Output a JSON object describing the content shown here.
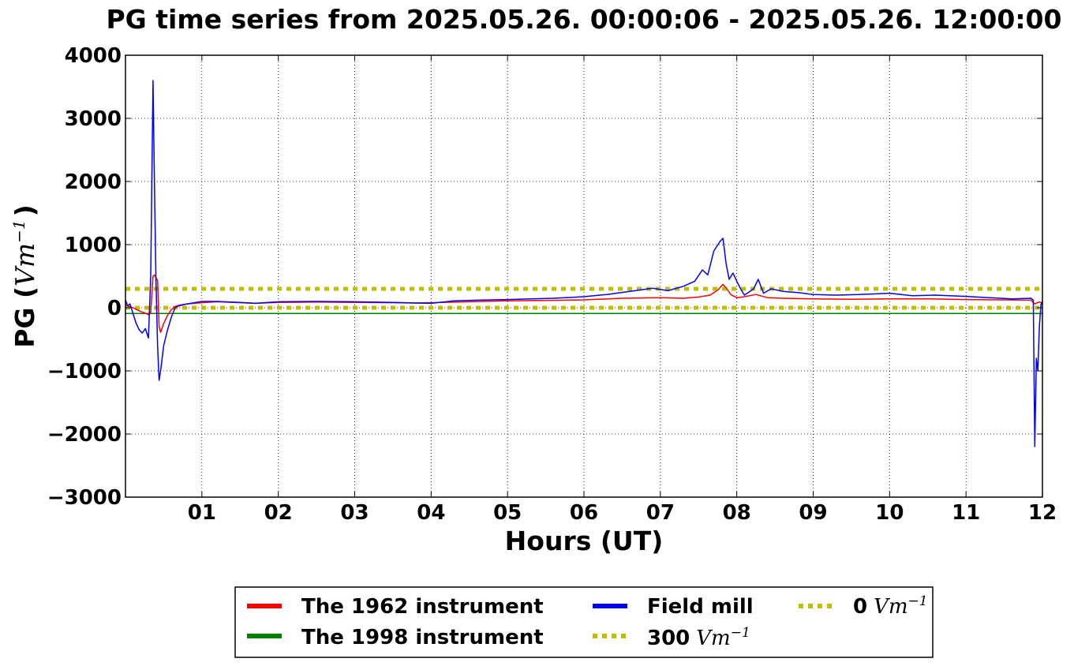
{
  "chart_data": {
    "type": "line",
    "title": "PG time series from 2025.05.26. 00:00:06 - 2025.05.26. 12:00:00",
    "xlabel": "Hours (UT)",
    "ylabel_prefix": "PG (",
    "ylabel_unit": "Vm",
    "ylabel_exp": "−1",
    "ylabel_suffix": ")",
    "xlim": [
      0,
      12
    ],
    "ylim": [
      -3000,
      4000
    ],
    "x_ticks": [
      1,
      2,
      3,
      4,
      5,
      6,
      7,
      8,
      9,
      10,
      11,
      12
    ],
    "x_tick_labels": [
      "01",
      "02",
      "03",
      "04",
      "05",
      "06",
      "07",
      "08",
      "09",
      "10",
      "11",
      "12"
    ],
    "y_ticks": [
      -3000,
      -2000,
      -1000,
      0,
      1000,
      2000,
      3000,
      4000
    ],
    "y_tick_labels": [
      "−3000",
      "−2000",
      "−1000",
      "0",
      "1000",
      "2000",
      "3000",
      "4000"
    ],
    "grid": true,
    "legend_position": "bottom-center, outside plot",
    "series": [
      {
        "name": "The 1962 instrument",
        "color": "#ff0000",
        "style": "solid",
        "x": [
          0.0,
          0.05,
          0.1,
          0.15,
          0.2,
          0.25,
          0.3,
          0.33,
          0.36,
          0.38,
          0.42,
          0.44,
          0.46,
          0.5,
          0.55,
          0.6,
          0.65,
          0.7,
          0.8,
          0.9,
          1.0,
          1.2,
          1.5,
          1.7,
          2.0,
          2.5,
          3.0,
          3.5,
          3.8,
          4.0,
          4.5,
          5.0,
          5.5,
          6.0,
          6.5,
          7.0,
          7.3,
          7.5,
          7.65,
          7.75,
          7.82,
          7.87,
          7.92,
          8.0,
          8.1,
          8.25,
          8.4,
          8.6,
          9.0,
          9.5,
          10.0,
          10.5,
          11.0,
          11.5,
          11.85,
          11.9,
          11.95,
          12.0
        ],
        "y": [
          50,
          20,
          0,
          -30,
          -60,
          -80,
          -110,
          -70,
          500,
          520,
          430,
          -300,
          -390,
          -250,
          -120,
          -30,
          20,
          40,
          60,
          70,
          80,
          95,
          80,
          70,
          85,
          90,
          85,
          80,
          75,
          80,
          95,
          110,
          115,
          125,
          150,
          160,
          150,
          170,
          200,
          280,
          370,
          300,
          210,
          160,
          175,
          210,
          160,
          150,
          140,
          135,
          140,
          140,
          130,
          125,
          120,
          60,
          90,
          80
        ]
      },
      {
        "name": "The 1998 instrument",
        "color": "#008000",
        "style": "solid",
        "x": [
          0,
          12
        ],
        "y": [
          -90,
          -90
        ]
      },
      {
        "name": "Field mill",
        "color": "#0000ff",
        "style": "solid",
        "x": [
          0.0,
          0.03,
          0.06,
          0.1,
          0.14,
          0.18,
          0.22,
          0.26,
          0.3,
          0.33,
          0.36,
          0.38,
          0.4,
          0.42,
          0.44,
          0.46,
          0.48,
          0.5,
          0.55,
          0.6,
          0.65,
          0.7,
          0.8,
          0.9,
          1.0,
          1.2,
          1.5,
          1.7,
          2.0,
          2.5,
          3.0,
          3.5,
          3.8,
          4.0,
          4.3,
          4.6,
          5.0,
          5.3,
          5.6,
          6.0,
          6.3,
          6.6,
          6.9,
          7.1,
          7.3,
          7.45,
          7.55,
          7.62,
          7.7,
          7.78,
          7.82,
          7.86,
          7.9,
          7.95,
          8.0,
          8.05,
          8.1,
          8.15,
          8.22,
          8.28,
          8.35,
          8.45,
          8.6,
          8.8,
          9.0,
          9.3,
          9.6,
          10.0,
          10.3,
          10.6,
          11.0,
          11.3,
          11.6,
          11.85,
          11.88,
          11.9,
          11.92,
          11.94,
          11.96,
          11.98,
          12.0
        ],
        "y": [
          120,
          30,
          60,
          -100,
          -250,
          -350,
          -400,
          -330,
          -480,
          500,
          3600,
          1900,
          400,
          -600,
          -1150,
          -1000,
          -800,
          -600,
          -350,
          -150,
          0,
          30,
          60,
          80,
          100,
          100,
          85,
          70,
          95,
          100,
          95,
          85,
          75,
          70,
          110,
          120,
          130,
          140,
          150,
          175,
          210,
          260,
          310,
          270,
          340,
          420,
          600,
          520,
          900,
          1050,
          1100,
          700,
          450,
          550,
          420,
          300,
          200,
          240,
          300,
          450,
          230,
          300,
          260,
          240,
          210,
          200,
          210,
          230,
          190,
          200,
          180,
          160,
          140,
          150,
          120,
          -2200,
          -800,
          -1000,
          -300,
          50,
          100
        ]
      },
      {
        "name": "300 Vm−1",
        "label_value": "300",
        "label_unit": "Vm",
        "label_exp": "−1",
        "color": "#bfbf00",
        "style": "dotted",
        "x": [
          0,
          12
        ],
        "y": [
          300,
          300
        ]
      },
      {
        "name": "0 Vm−1",
        "label_value": "0",
        "label_unit": "Vm",
        "label_exp": "−1",
        "color": "#bfbf00",
        "style": "dotted",
        "x": [
          0,
          12
        ],
        "y": [
          0,
          0
        ]
      }
    ]
  }
}
